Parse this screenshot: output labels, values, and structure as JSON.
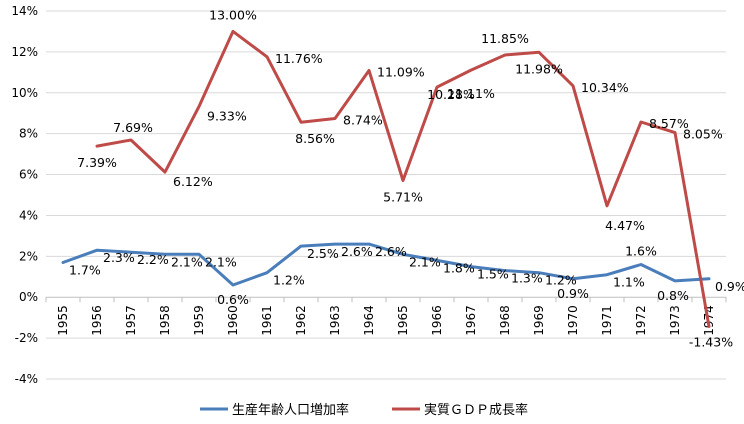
{
  "chart_data": {
    "type": "line",
    "title": "",
    "xlabel": "",
    "ylabel": "",
    "ylim": [
      -4,
      14
    ],
    "y_ticks": [
      -4,
      -2,
      0,
      2,
      4,
      6,
      8,
      10,
      12,
      14
    ],
    "y_tick_labels": [
      "-4%",
      "-2%",
      "0%",
      "2%",
      "4%",
      "6%",
      "8%",
      "10%",
      "12%",
      "14%"
    ],
    "grid": true,
    "legend_position": "bottom",
    "categories": [
      "1955",
      "1956",
      "1957",
      "1958",
      "1959",
      "1960",
      "1961",
      "1962",
      "1963",
      "1964",
      "1965",
      "1966",
      "1967",
      "1968",
      "1969",
      "1970",
      "1971",
      "1972",
      "1973",
      "1974"
    ],
    "series": [
      {
        "name": "生産年齢人口増加率",
        "color": "#4a7ebb",
        "values": [
          1.7,
          2.3,
          2.2,
          2.1,
          2.1,
          0.6,
          1.2,
          2.5,
          2.6,
          2.6,
          2.1,
          1.8,
          1.5,
          1.3,
          1.2,
          0.9,
          1.1,
          1.6,
          0.8,
          0.9
        ],
        "data_labels": [
          "1.7%",
          "2.3%",
          "2.2%",
          "2.1%",
          "2.1%",
          "0.6%",
          "1.2%",
          "2.5%",
          "2.6%",
          "2.6%",
          "2.1%",
          "1.8%",
          "1.5%",
          "1.3%",
          "1.2%",
          "0.9%",
          "1.1%",
          "1.6%",
          "0.8%",
          "0.9%"
        ]
      },
      {
        "name": "実質ＧＤＰ成長率",
        "color": "#be4b48",
        "values": [
          null,
          7.39,
          7.69,
          6.12,
          9.33,
          13.0,
          11.76,
          8.56,
          8.74,
          11.09,
          5.71,
          10.28,
          11.11,
          11.85,
          11.98,
          10.34,
          4.47,
          8.57,
          8.05,
          -1.43
        ],
        "data_labels": [
          "",
          "7.39%",
          "7.69%",
          "6.12%",
          "9.33%",
          "13.00%",
          "11.76%",
          "8.56%",
          "8.74%",
          "11.09%",
          "5.71%",
          "10.28%",
          "11.11%",
          "11.85%",
          "11.98%",
          "10.34%",
          "4.47%",
          "8.57%",
          "8.05%",
          "-1.43%"
        ]
      }
    ]
  }
}
